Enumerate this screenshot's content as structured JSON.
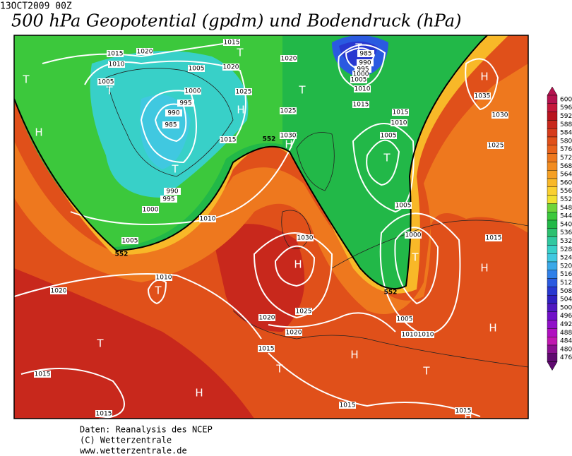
{
  "header": {
    "timestamp": "13OCT2009 00Z",
    "title": "500 hPa Geopotential (gpdm) und Bodendruck (hPa)"
  },
  "colorbar": {
    "levels": [
      600,
      596,
      592,
      588,
      584,
      580,
      576,
      572,
      568,
      564,
      560,
      556,
      552,
      548,
      544,
      540,
      536,
      532,
      528,
      524,
      520,
      516,
      512,
      508,
      504,
      500,
      496,
      492,
      488,
      484,
      480,
      476
    ],
    "colors": [
      "#b5124f",
      "#c4173b",
      "#b8141e",
      "#c8281c",
      "#d63c1c",
      "#e0501a",
      "#e8621c",
      "#ee781e",
      "#f28c20",
      "#f5a024",
      "#f8b828",
      "#fad030",
      "#f0e030",
      "#6ed43a",
      "#3cc83c",
      "#22b848",
      "#2cc070",
      "#30c8a0",
      "#38d0c8",
      "#40c8e0",
      "#3aa8e8",
      "#3080e8",
      "#2a5ae0",
      "#2838d0",
      "#3020c0",
      "#5018c0",
      "#7010c8",
      "#9010c8",
      "#b010c0",
      "#c018b0",
      "#8a1090",
      "#600a70"
    ]
  },
  "map": {
    "isobar_labels": [
      1015,
      1020,
      1010,
      1005,
      1015,
      1020,
      1005,
      1025,
      1000,
      995,
      990,
      985,
      1015,
      1020,
      1025,
      1030,
      985,
      990,
      995,
      1000,
      1005,
      1010,
      1015,
      1015,
      1010,
      1005,
      1035,
      1030,
      1025,
      1005,
      1000,
      1015,
      990,
      995,
      1000,
      1005,
      1010,
      1030,
      1010,
      1020,
      1025,
      1020,
      1020,
      1005,
      1010,
      1010,
      1015,
      1015,
      1015,
      1015,
      1015
    ],
    "height_labels": [
      552,
      552,
      552
    ],
    "centers": [
      "T",
      "H",
      "T",
      "T",
      "H",
      "T",
      "H",
      "T",
      "T",
      "T",
      "H",
      "H",
      "T",
      "H",
      "H",
      "T",
      "T",
      "T",
      "H",
      "T",
      "H",
      "H"
    ]
  },
  "footer": {
    "lines": [
      "Daten: Reanalysis des NCEP",
      "(C) Wetterzentrale",
      "www.wetterzentrale.de"
    ]
  }
}
